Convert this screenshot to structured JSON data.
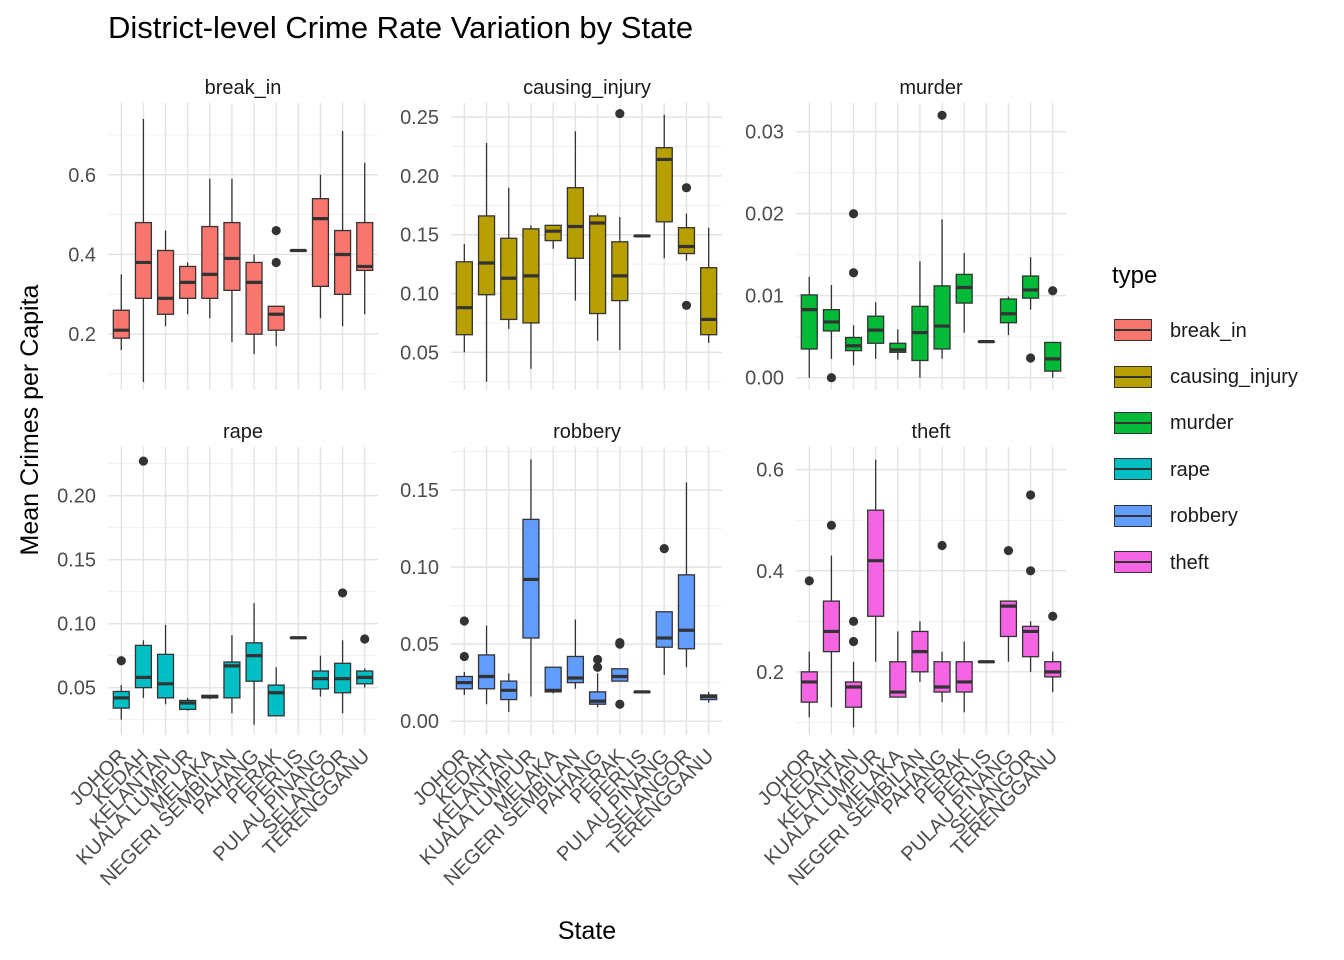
{
  "chart_data": {
    "type": "boxplot",
    "title": "District-level Crime Rate Variation by State",
    "xlabel": "State",
    "ylabel": "Mean Crimes per Capita",
    "legend_title": "type",
    "legend_position": "right",
    "grid": true,
    "states": [
      "JOHOR",
      "KEDAH",
      "KELANTAN",
      "KUALA LUMPUR",
      "MELAKA",
      "NEGERI SEMBILAN",
      "PAHANG",
      "PERAK",
      "PERLIS",
      "PULAU PINANG",
      "SELANGOR",
      "TERENGGANU"
    ],
    "panels": [
      {
        "name": "break_in",
        "color": "#F8766D",
        "ylim": [
          0.06,
          0.78
        ],
        "yticks": [
          0.2,
          0.4,
          0.6
        ],
        "ytick_labels": [
          "0.2",
          "0.4",
          "0.6"
        ],
        "boxes": [
          {
            "state": "JOHOR",
            "min": 0.16,
            "q1": 0.19,
            "median": 0.21,
            "q3": 0.26,
            "max": 0.35,
            "outliers": []
          },
          {
            "state": "KEDAH",
            "min": 0.08,
            "q1": 0.29,
            "median": 0.38,
            "q3": 0.48,
            "max": 0.74,
            "outliers": []
          },
          {
            "state": "KELANTAN",
            "min": 0.22,
            "q1": 0.25,
            "median": 0.29,
            "q3": 0.41,
            "max": 0.46,
            "outliers": []
          },
          {
            "state": "KUALA LUMPUR",
            "min": 0.25,
            "q1": 0.29,
            "median": 0.33,
            "q3": 0.37,
            "max": 0.38,
            "outliers": []
          },
          {
            "state": "MELAKA",
            "min": 0.24,
            "q1": 0.29,
            "median": 0.35,
            "q3": 0.47,
            "max": 0.59,
            "outliers": []
          },
          {
            "state": "NEGERI SEMBILAN",
            "min": 0.18,
            "q1": 0.31,
            "median": 0.39,
            "q3": 0.48,
            "max": 0.59,
            "outliers": []
          },
          {
            "state": "PAHANG",
            "min": 0.15,
            "q1": 0.2,
            "median": 0.33,
            "q3": 0.38,
            "max": 0.4,
            "outliers": []
          },
          {
            "state": "PERAK",
            "min": 0.17,
            "q1": 0.21,
            "median": 0.25,
            "q3": 0.27,
            "max": 0.27,
            "outliers": [
              0.38,
              0.46
            ]
          },
          {
            "state": "PERLIS",
            "min": 0.41,
            "q1": 0.41,
            "median": 0.41,
            "q3": 0.41,
            "max": 0.41,
            "outliers": []
          },
          {
            "state": "PULAU PINANG",
            "min": 0.24,
            "q1": 0.32,
            "median": 0.49,
            "q3": 0.54,
            "max": 0.6,
            "outliers": []
          },
          {
            "state": "SELANGOR",
            "min": 0.22,
            "q1": 0.3,
            "median": 0.4,
            "q3": 0.46,
            "max": 0.71,
            "outliers": []
          },
          {
            "state": "TERENGGANU",
            "min": 0.25,
            "q1": 0.36,
            "median": 0.37,
            "q3": 0.48,
            "max": 0.63,
            "outliers": []
          }
        ]
      },
      {
        "name": "causing_injury",
        "color": "#B79F00",
        "ylim": [
          0.018,
          0.262
        ],
        "yticks": [
          0.05,
          0.1,
          0.15,
          0.2,
          0.25
        ],
        "ytick_labels": [
          "0.05",
          "0.10",
          "0.15",
          "0.20",
          "0.25"
        ],
        "boxes": [
          {
            "state": "JOHOR",
            "min": 0.05,
            "q1": 0.065,
            "median": 0.088,
            "q3": 0.127,
            "max": 0.142,
            "outliers": []
          },
          {
            "state": "KEDAH",
            "min": 0.025,
            "q1": 0.099,
            "median": 0.126,
            "q3": 0.166,
            "max": 0.228,
            "outliers": []
          },
          {
            "state": "KELANTAN",
            "min": 0.07,
            "q1": 0.078,
            "median": 0.113,
            "q3": 0.147,
            "max": 0.19,
            "outliers": []
          },
          {
            "state": "KUALA LUMPUR",
            "min": 0.036,
            "q1": 0.075,
            "median": 0.115,
            "q3": 0.155,
            "max": 0.158,
            "outliers": []
          },
          {
            "state": "MELAKA",
            "min": 0.138,
            "q1": 0.145,
            "median": 0.153,
            "q3": 0.158,
            "max": 0.158,
            "outliers": []
          },
          {
            "state": "NEGERI SEMBILAN",
            "min": 0.094,
            "q1": 0.13,
            "median": 0.157,
            "q3": 0.19,
            "max": 0.238,
            "outliers": []
          },
          {
            "state": "PAHANG",
            "min": 0.06,
            "q1": 0.083,
            "median": 0.16,
            "q3": 0.166,
            "max": 0.168,
            "outliers": []
          },
          {
            "state": "PERAK",
            "min": 0.052,
            "q1": 0.094,
            "median": 0.115,
            "q3": 0.144,
            "max": 0.165,
            "outliers": [
              0.253
            ]
          },
          {
            "state": "PERLIS",
            "min": 0.149,
            "q1": 0.149,
            "median": 0.149,
            "q3": 0.149,
            "max": 0.149,
            "outliers": []
          },
          {
            "state": "PULAU PINANG",
            "min": 0.13,
            "q1": 0.161,
            "median": 0.214,
            "q3": 0.224,
            "max": 0.252,
            "outliers": []
          },
          {
            "state": "SELANGOR",
            "min": 0.128,
            "q1": 0.134,
            "median": 0.14,
            "q3": 0.156,
            "max": 0.168,
            "outliers": [
              0.09,
              0.19
            ]
          },
          {
            "state": "TERENGGANU",
            "min": 0.058,
            "q1": 0.065,
            "median": 0.078,
            "q3": 0.122,
            "max": 0.156,
            "outliers": []
          }
        ]
      },
      {
        "name": "murder",
        "color": "#00BA38",
        "ylim": [
          -0.0015,
          0.0335
        ],
        "yticks": [
          0.0,
          0.01,
          0.02,
          0.03
        ],
        "ytick_labels": [
          "0.00",
          "0.01",
          "0.02",
          "0.03"
        ],
        "boxes": [
          {
            "state": "JOHOR",
            "min": 0.0,
            "q1": 0.0035,
            "median": 0.0083,
            "q3": 0.0101,
            "max": 0.0123,
            "outliers": []
          },
          {
            "state": "KEDAH",
            "min": 0.0023,
            "q1": 0.0057,
            "median": 0.0068,
            "q3": 0.0083,
            "max": 0.0113,
            "outliers": [
              0.0
            ]
          },
          {
            "state": "KELANTAN",
            "min": 0.0015,
            "q1": 0.0033,
            "median": 0.0039,
            "q3": 0.0049,
            "max": 0.0064,
            "outliers": [
              0.0128,
              0.02
            ]
          },
          {
            "state": "KUALA LUMPUR",
            "min": 0.0023,
            "q1": 0.0042,
            "median": 0.0058,
            "q3": 0.0075,
            "max": 0.0092,
            "outliers": []
          },
          {
            "state": "MELAKA",
            "min": 0.0022,
            "q1": 0.0031,
            "median": 0.0034,
            "q3": 0.0042,
            "max": 0.0059,
            "outliers": []
          },
          {
            "state": "NEGERI SEMBILAN",
            "min": 0.0,
            "q1": 0.0021,
            "median": 0.0055,
            "q3": 0.0087,
            "max": 0.0142,
            "outliers": []
          },
          {
            "state": "PAHANG",
            "min": 0.0023,
            "q1": 0.0035,
            "median": 0.0063,
            "q3": 0.0112,
            "max": 0.0193,
            "outliers": [
              0.032
            ]
          },
          {
            "state": "PERAK",
            "min": 0.0055,
            "q1": 0.0091,
            "median": 0.011,
            "q3": 0.0126,
            "max": 0.0152,
            "outliers": []
          },
          {
            "state": "PERLIS",
            "min": 0.0044,
            "q1": 0.0044,
            "median": 0.0044,
            "q3": 0.0044,
            "max": 0.0044,
            "outliers": []
          },
          {
            "state": "PULAU PINANG",
            "min": 0.0052,
            "q1": 0.0067,
            "median": 0.0078,
            "q3": 0.0096,
            "max": 0.0099,
            "outliers": []
          },
          {
            "state": "SELANGOR",
            "min": 0.0083,
            "q1": 0.0097,
            "median": 0.0107,
            "q3": 0.0124,
            "max": 0.0147,
            "outliers": [
              0.0024
            ]
          },
          {
            "state": "TERENGGANU",
            "min": 0.0,
            "q1": 0.0008,
            "median": 0.0023,
            "q3": 0.0043,
            "max": 0.0043,
            "outliers": [
              0.0106
            ]
          }
        ]
      },
      {
        "name": "rape",
        "color": "#00BFC4",
        "ylim": [
          0.013,
          0.238
        ],
        "yticks": [
          0.05,
          0.1,
          0.15,
          0.2
        ],
        "ytick_labels": [
          "0.05",
          "0.10",
          "0.15",
          "0.20"
        ],
        "boxes": [
          {
            "state": "JOHOR",
            "min": 0.025,
            "q1": 0.034,
            "median": 0.042,
            "q3": 0.047,
            "max": 0.052,
            "outliers": [
              0.071
            ]
          },
          {
            "state": "KEDAH",
            "min": 0.042,
            "q1": 0.05,
            "median": 0.058,
            "q3": 0.083,
            "max": 0.087,
            "outliers": [
              0.227
            ]
          },
          {
            "state": "KELANTAN",
            "min": 0.037,
            "q1": 0.042,
            "median": 0.053,
            "q3": 0.076,
            "max": 0.099,
            "outliers": []
          },
          {
            "state": "KUALA LUMPUR",
            "min": 0.032,
            "q1": 0.033,
            "median": 0.038,
            "q3": 0.04,
            "max": 0.042,
            "outliers": []
          },
          {
            "state": "MELAKA",
            "min": 0.041,
            "q1": 0.042,
            "median": 0.043,
            "q3": 0.044,
            "max": 0.044,
            "outliers": []
          },
          {
            "state": "NEGERI SEMBILAN",
            "min": 0.03,
            "q1": 0.042,
            "median": 0.067,
            "q3": 0.07,
            "max": 0.091,
            "outliers": []
          },
          {
            "state": "PAHANG",
            "min": 0.021,
            "q1": 0.055,
            "median": 0.075,
            "q3": 0.085,
            "max": 0.116,
            "outliers": []
          },
          {
            "state": "PERAK",
            "min": 0.028,
            "q1": 0.028,
            "median": 0.046,
            "q3": 0.052,
            "max": 0.066,
            "outliers": []
          },
          {
            "state": "PERLIS",
            "min": 0.089,
            "q1": 0.089,
            "median": 0.089,
            "q3": 0.089,
            "max": 0.089,
            "outliers": []
          },
          {
            "state": "PULAU PINANG",
            "min": 0.043,
            "q1": 0.049,
            "median": 0.057,
            "q3": 0.063,
            "max": 0.075,
            "outliers": []
          },
          {
            "state": "SELANGOR",
            "min": 0.03,
            "q1": 0.046,
            "median": 0.057,
            "q3": 0.069,
            "max": 0.087,
            "outliers": [
              0.124
            ]
          },
          {
            "state": "TERENGGANU",
            "min": 0.05,
            "q1": 0.053,
            "median": 0.058,
            "q3": 0.063,
            "max": 0.065,
            "outliers": [
              0.088
            ]
          }
        ]
      },
      {
        "name": "robbery",
        "color": "#619CFF",
        "ylim": [
          -0.009,
          0.178
        ],
        "yticks": [
          0.0,
          0.05,
          0.1,
          0.15
        ],
        "ytick_labels": [
          "0.00",
          "0.05",
          "0.10",
          "0.15"
        ],
        "boxes": [
          {
            "state": "JOHOR",
            "min": 0.017,
            "q1": 0.021,
            "median": 0.025,
            "q3": 0.029,
            "max": 0.032,
            "outliers": [
              0.042,
              0.065
            ]
          },
          {
            "state": "KEDAH",
            "min": 0.011,
            "q1": 0.021,
            "median": 0.029,
            "q3": 0.043,
            "max": 0.062,
            "outliers": []
          },
          {
            "state": "KELANTAN",
            "min": 0.006,
            "q1": 0.014,
            "median": 0.02,
            "q3": 0.026,
            "max": 0.031,
            "outliers": []
          },
          {
            "state": "KUALA LUMPUR",
            "min": 0.016,
            "q1": 0.054,
            "median": 0.092,
            "q3": 0.131,
            "max": 0.17,
            "outliers": []
          },
          {
            "state": "MELAKA",
            "min": 0.018,
            "q1": 0.019,
            "median": 0.02,
            "q3": 0.035,
            "max": 0.035,
            "outliers": []
          },
          {
            "state": "NEGERI SEMBILAN",
            "min": 0.021,
            "q1": 0.025,
            "median": 0.028,
            "q3": 0.042,
            "max": 0.066,
            "outliers": []
          },
          {
            "state": "PAHANG",
            "min": 0.009,
            "q1": 0.011,
            "median": 0.013,
            "q3": 0.019,
            "max": 0.031,
            "outliers": [
              0.035,
              0.04
            ]
          },
          {
            "state": "PERAK",
            "min": 0.026,
            "q1": 0.026,
            "median": 0.029,
            "q3": 0.034,
            "max": 0.034,
            "outliers": [
              0.011,
              0.05,
              0.051
            ]
          },
          {
            "state": "PERLIS",
            "min": 0.019,
            "q1": 0.019,
            "median": 0.019,
            "q3": 0.019,
            "max": 0.019,
            "outliers": []
          },
          {
            "state": "PULAU PINANG",
            "min": 0.03,
            "q1": 0.048,
            "median": 0.054,
            "q3": 0.071,
            "max": 0.071,
            "outliers": [
              0.112
            ]
          },
          {
            "state": "SELANGOR",
            "min": 0.035,
            "q1": 0.047,
            "median": 0.059,
            "q3": 0.095,
            "max": 0.155,
            "outliers": []
          },
          {
            "state": "TERENGGANU",
            "min": 0.012,
            "q1": 0.014,
            "median": 0.016,
            "q3": 0.017,
            "max": 0.019,
            "outliers": []
          }
        ]
      },
      {
        "name": "theft",
        "color": "#F564E3",
        "ylim": [
          0.075,
          0.645
        ],
        "yticks": [
          0.2,
          0.4,
          0.6
        ],
        "ytick_labels": [
          "0.2",
          "0.4",
          "0.6"
        ],
        "boxes": [
          {
            "state": "JOHOR",
            "min": 0.11,
            "q1": 0.14,
            "median": 0.18,
            "q3": 0.2,
            "max": 0.24,
            "outliers": [
              0.38
            ]
          },
          {
            "state": "KEDAH",
            "min": 0.13,
            "q1": 0.24,
            "median": 0.28,
            "q3": 0.34,
            "max": 0.43,
            "outliers": [
              0.49
            ]
          },
          {
            "state": "KELANTAN",
            "min": 0.09,
            "q1": 0.13,
            "median": 0.17,
            "q3": 0.18,
            "max": 0.22,
            "outliers": [
              0.26,
              0.3
            ]
          },
          {
            "state": "KUALA LUMPUR",
            "min": 0.22,
            "q1": 0.31,
            "median": 0.42,
            "q3": 0.52,
            "max": 0.62,
            "outliers": []
          },
          {
            "state": "MELAKA",
            "min": 0.15,
            "q1": 0.15,
            "median": 0.16,
            "q3": 0.22,
            "max": 0.28,
            "outliers": []
          },
          {
            "state": "NEGERI SEMBILAN",
            "min": 0.18,
            "q1": 0.2,
            "median": 0.24,
            "q3": 0.28,
            "max": 0.3,
            "outliers": []
          },
          {
            "state": "PAHANG",
            "min": 0.14,
            "q1": 0.16,
            "median": 0.17,
            "q3": 0.22,
            "max": 0.24,
            "outliers": [
              0.45
            ]
          },
          {
            "state": "PERAK",
            "min": 0.12,
            "q1": 0.16,
            "median": 0.18,
            "q3": 0.22,
            "max": 0.26,
            "outliers": []
          },
          {
            "state": "PERLIS",
            "min": 0.22,
            "q1": 0.22,
            "median": 0.22,
            "q3": 0.22,
            "max": 0.22,
            "outliers": []
          },
          {
            "state": "PULAU PINANG",
            "min": 0.22,
            "q1": 0.27,
            "median": 0.33,
            "q3": 0.34,
            "max": 0.34,
            "outliers": [
              0.44
            ]
          },
          {
            "state": "SELANGOR",
            "min": 0.2,
            "q1": 0.23,
            "median": 0.28,
            "q3": 0.29,
            "max": 0.3,
            "outliers": [
              0.4,
              0.55
            ]
          },
          {
            "state": "TERENGGANU",
            "min": 0.16,
            "q1": 0.19,
            "median": 0.2,
            "q3": 0.22,
            "max": 0.24,
            "outliers": [
              0.31
            ]
          }
        ]
      }
    ]
  }
}
